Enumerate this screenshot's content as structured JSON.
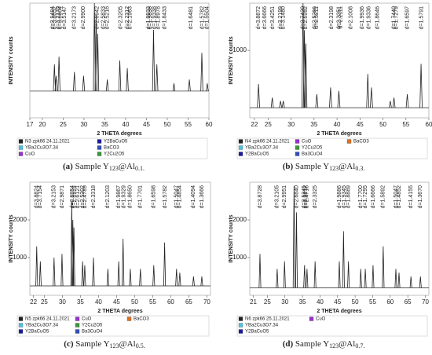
{
  "chart_data": [
    {
      "type": "stem",
      "caption_label": "(a)",
      "caption": [
        "Sample Y",
        "123",
        "@Al",
        "0.1."
      ],
      "xlabel": "2 THETA degrees",
      "ylabel": "INTENSITY counts",
      "xlim": [
        17,
        60
      ],
      "xticks": [
        17,
        20,
        25,
        30,
        35,
        40,
        45,
        50,
        55,
        60
      ],
      "ylim": [
        0,
        3000
      ],
      "yticks": [],
      "color": "#222222",
      "baseline": 700,
      "peaks": {
        "x": [
          22.9,
          23.3,
          24.0,
          27.7,
          29.9,
          32.5,
          32.9,
          33.3,
          35.6,
          38.6,
          40.4,
          46.7,
          47.5,
          51.6,
          55.3,
          58.3,
          59.6
        ],
        "values": [
          1400,
          1100,
          1600,
          1200,
          1100,
          3000,
          2700,
          2200,
          1000,
          1500,
          1300,
          2300,
          1400,
          900,
          1000,
          1700,
          900
        ]
      },
      "annotations": [
        {
          "text": "d=3.9484",
          "x": 22.5
        },
        {
          "text": "d=3.5147",
          "x": 25.3
        },
        {
          "text": "d=3.8652",
          "x": 23.0
        },
        {
          "text": "d=3.7170",
          "x": 23.9
        },
        {
          "text": "d=3.6604",
          "x": 24.3
        },
        {
          "text": "d=3.2173",
          "x": 27.7
        },
        {
          "text": "d=2.9900",
          "x": 29.9
        },
        {
          "text": "d=2.6942",
          "x": 33.2
        },
        {
          "text": "d=2.5833",
          "x": 34.7
        },
        {
          "text": "d=2.5216",
          "x": 35.6
        },
        {
          "text": "d=2.3205",
          "x": 38.8
        },
        {
          "text": "d=2.2312",
          "x": 40.4
        },
        {
          "text": "d=2.1963",
          "x": 41.1
        },
        {
          "text": "d=1.9933",
          "x": 45.5
        },
        {
          "text": "d=1.9838",
          "x": 45.9
        },
        {
          "text": "d=1.9338",
          "x": 46.9
        },
        {
          "text": "d=1.8978",
          "x": 47.9
        },
        {
          "text": "d=1.8433",
          "x": 49.4
        },
        {
          "text": "d=1.6481",
          "x": 55.7
        },
        {
          "text": "d=1.5782",
          "x": 58.4
        },
        {
          "text": "d=1.5504",
          "x": 59.6
        }
      ],
      "legend": [
        {
          "name": "N3 zpk66 24.11.2021",
          "color": "#222222"
        },
        {
          "name": "Y2BaCuO5",
          "color": "#1a1aa0"
        },
        {
          "name": "YBa2Cu3O7.34",
          "color": "#4fc3e0"
        },
        {
          "name": "BaCO3",
          "color": "#3050c0"
        },
        {
          "name": "CuO",
          "color": "#9b30d0"
        },
        {
          "name": "Y2Cu2O5",
          "color": "#3a9a3a"
        }
      ]
    },
    {
      "type": "stem",
      "caption_label": "(b)",
      "caption": [
        "Sample Y",
        "123",
        "@Al",
        "0.3."
      ],
      "xlabel": "2 THETA degrees",
      "ylabel": "INTENSITY counts",
      "xlim": [
        21,
        60
      ],
      "xticks": [
        22,
        25,
        30,
        35,
        40,
        45,
        50,
        55,
        60
      ],
      "ylim": [
        0,
        1700
      ],
      "yticks": [
        1000
      ],
      "color": "#222222",
      "baseline": 150,
      "peaks": {
        "x": [
          22.9,
          25.9,
          27.7,
          28.3,
          32.6,
          32.9,
          33.2,
          35.6,
          38.6,
          40.4,
          46.7,
          47.5,
          51.6,
          52.4,
          55.3,
          58.3
        ],
        "values": [
          500,
          300,
          250,
          250,
          1700,
          1300,
          1100,
          350,
          450,
          400,
          650,
          450,
          250,
          300,
          350,
          800
        ]
      },
      "annotations": [
        {
          "text": "d=3.8872",
          "x": 22.9
        },
        {
          "text": "d=3.6666",
          "x": 24.3
        },
        {
          "text": "d=3.4251",
          "x": 26.0
        },
        {
          "text": "d=3.2199",
          "x": 27.7
        },
        {
          "text": "d=3.1480",
          "x": 28.3
        },
        {
          "text": "d=2.7420",
          "x": 32.6
        },
        {
          "text": "d=2.6992",
          "x": 33.2
        },
        {
          "text": "d=2.5211",
          "x": 35.6
        },
        {
          "text": "d=2.5266",
          "x": 35.1
        },
        {
          "text": "d=2.3198",
          "x": 38.8
        },
        {
          "text": "d=2.2251",
          "x": 40.4
        },
        {
          "text": "d=2.2111",
          "x": 40.8
        },
        {
          "text": "d=2.1008",
          "x": 43.0
        },
        {
          "text": "d=1.9936",
          "x": 45.5
        },
        {
          "text": "d=1.9336",
          "x": 46.9
        },
        {
          "text": "d=1.8646",
          "x": 48.8
        },
        {
          "text": "d=1.7440",
          "x": 52.4
        },
        {
          "text": "d=1.7279",
          "x": 52.9
        },
        {
          "text": "d=1.6597",
          "x": 55.3
        },
        {
          "text": "d=1.5791",
          "x": 58.4
        }
      ],
      "legend": [
        {
          "name": "N4 zpk66 24.11.2021",
          "color": "#222222"
        },
        {
          "name": "CuO",
          "color": "#9b30d0"
        },
        {
          "name": "BaCO3",
          "color": "#e07020"
        },
        {
          "name": "YBa2Cu3O7.34",
          "color": "#4fc3e0"
        },
        {
          "name": "Y2Cu2O5",
          "color": "#3a9a3a"
        },
        {
          "name": "",
          "color": ""
        },
        {
          "name": "Y2BaCuO5",
          "color": "#1a1aa0"
        },
        {
          "name": "Ba3CuO4",
          "color": "#3050c0"
        }
      ]
    },
    {
      "type": "stem",
      "caption_label": "(c)",
      "caption": [
        "Sample Y",
        "123",
        "@Al",
        "0.5."
      ],
      "xlabel": "2 THETA degrees",
      "ylabel": "INTENSITY counts",
      "xlim": [
        21,
        71
      ],
      "xticks": [
        22,
        25,
        30,
        35,
        40,
        45,
        50,
        55,
        60,
        65,
        70
      ],
      "ylim": [
        0,
        3000
      ],
      "yticks": [
        1000,
        2000
      ],
      "color": "#222222",
      "baseline": 250,
      "peaks": {
        "x": [
          22.9,
          23.9,
          27.7,
          29.9,
          32.6,
          32.9,
          33.2,
          35.6,
          36.2,
          38.6,
          42.6,
          45.6,
          46.8,
          48.8,
          51.6,
          55.3,
          58.3,
          61.6,
          62.5,
          66.3,
          68.6
        ],
        "values": [
          1300,
          900,
          1000,
          1100,
          2500,
          2000,
          1800,
          900,
          800,
          1000,
          700,
          900,
          1500,
          700,
          700,
          800,
          1400,
          700,
          600,
          500,
          500
        ]
      },
      "annotations": [
        {
          "text": "d=3.8824",
          "x": 22.9
        },
        {
          "text": "d=3.7154",
          "x": 23.9
        },
        {
          "text": "d=3.2153",
          "x": 27.7
        },
        {
          "text": "d=2.9871",
          "x": 29.9
        },
        {
          "text": "d=2.6954",
          "x": 32.8
        },
        {
          "text": "d=2.6924",
          "x": 33.3
        },
        {
          "text": "d=2.6121",
          "x": 34.3
        },
        {
          "text": "d=2.5202",
          "x": 35.6
        },
        {
          "text": "d=2.4789",
          "x": 36.2
        },
        {
          "text": "d=2.3318",
          "x": 38.6
        },
        {
          "text": "d=2.1203",
          "x": 42.6
        },
        {
          "text": "d=1.9867",
          "x": 45.6
        },
        {
          "text": "d=1.9329",
          "x": 47.0
        },
        {
          "text": "d=1.8650",
          "x": 48.8
        },
        {
          "text": "d=1.7701",
          "x": 51.6
        },
        {
          "text": "d=1.6598",
          "x": 55.3
        },
        {
          "text": "d=1.5782",
          "x": 58.4
        },
        {
          "text": "d=1.5047",
          "x": 61.6
        },
        {
          "text": "d=1.4854",
          "x": 62.5
        },
        {
          "text": "d=1.4094",
          "x": 66.3
        },
        {
          "text": "d=1.3666",
          "x": 68.6
        }
      ],
      "legend": [
        {
          "name": "N5 zpk66 24.11.2021",
          "color": "#222222"
        },
        {
          "name": "CuO",
          "color": "#9b30d0"
        },
        {
          "name": "BaCO3",
          "color": "#e07020"
        },
        {
          "name": "YBa2Cu3O7.34",
          "color": "#4fc3e0"
        },
        {
          "name": "Y2Cu2O5",
          "color": "#3a9a3a"
        },
        {
          "name": "",
          "color": ""
        },
        {
          "name": "Y2BaCuO5",
          "color": "#1a1aa0"
        },
        {
          "name": "Ba3CuO4",
          "color": "#3050c0"
        }
      ]
    },
    {
      "type": "stem",
      "caption_label": "(d)",
      "caption": [
        "Sample Y",
        "123",
        "@Al",
        "0.7."
      ],
      "xlabel": "2 THETA degrees",
      "ylabel": "INTENSITY counts",
      "xlim": [
        20,
        71
      ],
      "xticks": [
        21,
        25,
        30,
        35,
        40,
        45,
        50,
        55,
        60,
        65,
        70
      ],
      "ylim": [
        0,
        3000
      ],
      "yticks": [
        1000,
        2000
      ],
      "color": "#222222",
      "baseline": 200,
      "peaks": {
        "x": [
          22.9,
          27.8,
          29.9,
          32.6,
          33.3,
          35.6,
          36.3,
          38.6,
          45.5,
          46.7,
          48.1,
          51.6,
          52.9,
          55.1,
          58.0,
          61.6,
          62.5,
          65.9,
          68.6
        ],
        "values": [
          1100,
          700,
          900,
          2900,
          2200,
          800,
          700,
          900,
          900,
          1700,
          900,
          700,
          700,
          800,
          1300,
          700,
          600,
          500,
          500
        ]
      },
      "annotations": [
        {
          "text": "d=3.8728",
          "x": 22.9
        },
        {
          "text": "d=3.2105",
          "x": 27.8
        },
        {
          "text": "d=2.9951",
          "x": 29.9
        },
        {
          "text": "d=2.6840",
          "x": 33.3
        },
        {
          "text": "d=2.5245",
          "x": 35.5
        },
        {
          "text": "d=2.4716",
          "x": 36.3
        },
        {
          "text": "d=2.3325",
          "x": 38.6
        },
        {
          "text": "d=2.5217",
          "x": 35.9
        },
        {
          "text": "d=1.9886",
          "x": 45.5
        },
        {
          "text": "d=1.9345",
          "x": 46.9
        },
        {
          "text": "d=1.8889",
          "x": 48.1
        },
        {
          "text": "d=1.7700",
          "x": 51.6
        },
        {
          "text": "d=1.7295",
          "x": 52.9
        },
        {
          "text": "d=1.6666",
          "x": 55.1
        },
        {
          "text": "d=1.5892",
          "x": 58.0
        },
        {
          "text": "d=1.5047",
          "x": 61.6
        },
        {
          "text": "d=1.4852",
          "x": 62.5
        },
        {
          "text": "d=1.4155",
          "x": 65.9
        },
        {
          "text": "d=1.3670",
          "x": 68.6
        }
      ],
      "legend": [
        {
          "name": "N6 zpk66 25.11.2021",
          "color": "#222222"
        },
        {
          "name": "CuO",
          "color": "#9b30d0"
        },
        {
          "name": "YBa2Cu3O7.34",
          "color": "#4fc3e0"
        },
        {
          "name": "",
          "color": ""
        },
        {
          "name": "Y2BaCuO5",
          "color": "#1a1aa0"
        }
      ]
    }
  ]
}
